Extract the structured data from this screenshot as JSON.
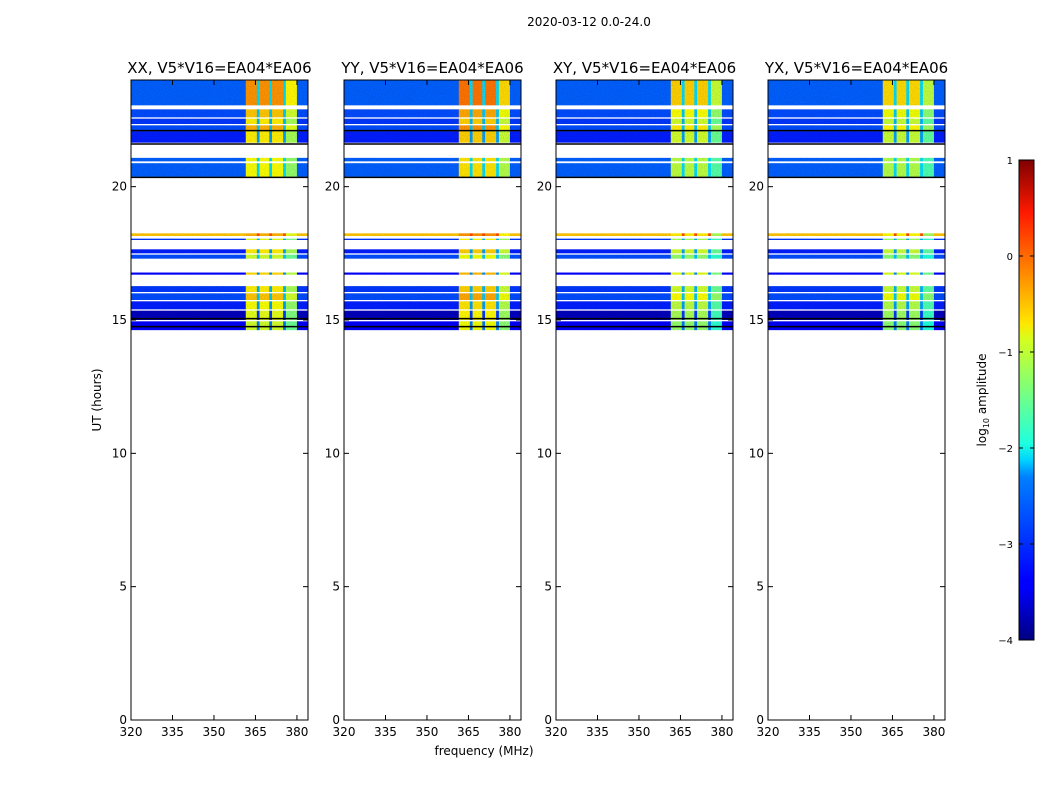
{
  "chart_data": {
    "type": "heatmap",
    "suptitle": "2020-03-12 0.0-24.0",
    "xlabel": "frequency (MHz)",
    "ylabel": "UT (hours)",
    "xlim": [
      320,
      384
    ],
    "ylim": [
      0,
      24
    ],
    "xticks": [
      320,
      335,
      350,
      365,
      380
    ],
    "yticks": [
      0,
      5,
      10,
      15,
      20
    ],
    "panels": [
      {
        "title": "XX, V5*V16=EA04*EA06",
        "rfi_offset": 0.0
      },
      {
        "title": "YY, V5*V16=EA04*EA06",
        "rfi_offset": 0.15
      },
      {
        "title": "XY, V5*V16=EA04*EA06",
        "rfi_offset": -0.3
      },
      {
        "title": "YX, V5*V16=EA04*EA06",
        "rfi_offset": -0.35
      }
    ],
    "freq_bands": [
      {
        "range": [
          320,
          361.5
        ],
        "kind": "bg"
      },
      {
        "range": [
          361.5,
          365.5
        ],
        "kind": "rfi"
      },
      {
        "range": [
          365.5,
          366.5
        ],
        "kind": "gap"
      },
      {
        "range": [
          366.5,
          370
        ],
        "kind": "rfi"
      },
      {
        "range": [
          370,
          371
        ],
        "kind": "gap"
      },
      {
        "range": [
          371,
          375
        ],
        "kind": "rfi"
      },
      {
        "range": [
          375,
          376
        ],
        "kind": "gap"
      },
      {
        "range": [
          376,
          380
        ],
        "kind": "rfi2"
      },
      {
        "range": [
          380,
          384
        ],
        "kind": "bg"
      }
    ],
    "time_segments": [
      {
        "ut": [
          23.05,
          24.0
        ],
        "bg": -2.9,
        "rfi": -0.35
      },
      {
        "ut": [
          22.6,
          22.9
        ],
        "bg": -3.0,
        "rfi": -0.6
      },
      {
        "ut": [
          22.35,
          22.55
        ],
        "bg": -3.1,
        "rfi": -0.8
      },
      {
        "ut": [
          22.12,
          22.3
        ],
        "bg": -3.0,
        "rfi": -0.5
      },
      {
        "ut": [
          21.65,
          22.08
        ],
        "bg": -3.2,
        "rfi": -0.8
      },
      {
        "ut": [
          20.95,
          21.08
        ],
        "bg": -2.9,
        "rfi": -0.9
      },
      {
        "ut": [
          20.37,
          20.88
        ],
        "bg": -2.9,
        "rfi": -0.9
      },
      {
        "ut": [
          18.15,
          18.25
        ],
        "bg": -0.6,
        "rfi": -0.5
      },
      {
        "ut": [
          18.0,
          18.05
        ],
        "bg": -3.1,
        "rfi": -1.0
      },
      {
        "ut": [
          17.5,
          17.65
        ],
        "bg": -3.2,
        "rfi": -0.8
      },
      {
        "ut": [
          17.3,
          17.45
        ],
        "bg": -3.0,
        "rfi": -1.1
      },
      {
        "ut": [
          16.7,
          16.78
        ],
        "bg": -3.3,
        "rfi": -0.7
      },
      {
        "ut": [
          16.05,
          16.27
        ],
        "bg": -3.1,
        "rfi": -0.8
      },
      {
        "ut": [
          15.75,
          16.0
        ],
        "bg": -3.0,
        "rfi": -0.6
      },
      {
        "ut": [
          15.4,
          15.7
        ],
        "bg": -3.2,
        "rfi": -0.9
      },
      {
        "ut": [
          15.0,
          15.35
        ],
        "bg": -3.7,
        "rfi": -1.0
      },
      {
        "ut": [
          14.62,
          14.95
        ],
        "bg": -3.4,
        "rfi": -1.1
      }
    ],
    "flag_lines_ut": [
      21.6,
      20.35,
      15.05,
      14.75,
      22.1
    ],
    "colorbar": {
      "label": "log",
      "label_sub": "10",
      "label_rest": " amplitude",
      "range": [
        -4,
        1
      ],
      "ticks": [
        "1",
        "0",
        "−1",
        "−2",
        "−3",
        "−4"
      ],
      "colormap": "jet"
    }
  }
}
